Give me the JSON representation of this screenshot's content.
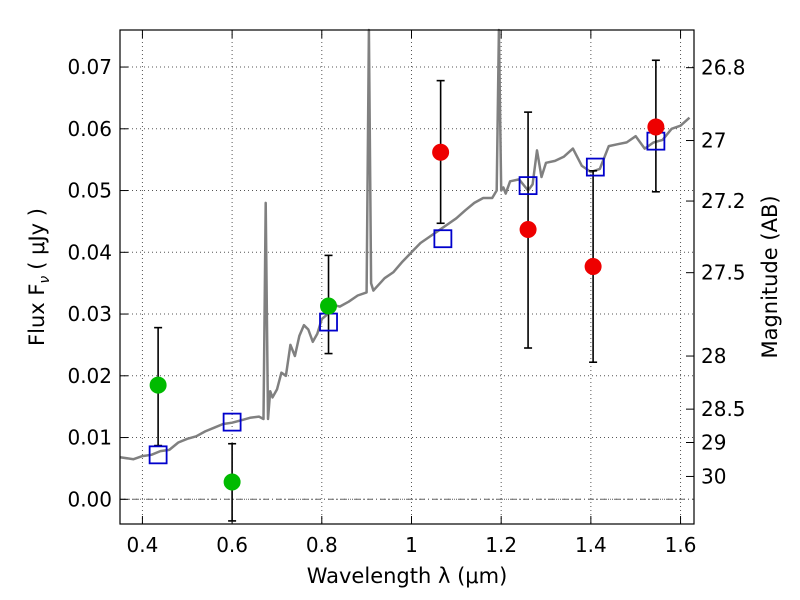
{
  "chart_data": {
    "type": "scatter",
    "xlabel": "Wavelength  λ (μm)",
    "ylabel": "Flux  F",
    "ylabel_sub": "ν",
    "ylabel_unit": "( μJy )",
    "y2label": "Magnitude (AB)",
    "xlim": [
      0.35,
      1.63
    ],
    "ylim": [
      -0.004,
      0.076
    ],
    "grid": true,
    "x_ticks": [
      0.4,
      0.6,
      0.8,
      1.0,
      1.2,
      1.4,
      1.6
    ],
    "x_tick_labels": [
      "0.4",
      "0.6",
      "0.8",
      "1",
      "1.2",
      "1.4",
      "1.6"
    ],
    "y_ticks": [
      0.0,
      0.01,
      0.02,
      0.03,
      0.04,
      0.05,
      0.06,
      0.07
    ],
    "y_tick_labels": [
      "0.00",
      "0.01",
      "0.02",
      "0.03",
      "0.04",
      "0.05",
      "0.06",
      "0.07"
    ],
    "y2_ticks": [
      {
        "label": "26.8",
        "flux": 0.0699
      },
      {
        "label": "27",
        "flux": 0.0581
      },
      {
        "label": "27.2",
        "flux": 0.0483
      },
      {
        "label": "27.5",
        "flux": 0.0367
      },
      {
        "label": "28",
        "flux": 0.0232
      },
      {
        "label": "28.5",
        "flux": 0.0146
      },
      {
        "label": "29",
        "flux": 0.0092
      },
      {
        "label": "30",
        "flux": 0.0037
      }
    ],
    "colors": {
      "template": "#808080",
      "model_squares": "#0000cc",
      "green_points": "#00bb00",
      "red_points": "#ee0000",
      "errorbar": "#000000",
      "grid": "#555555"
    },
    "series": [
      {
        "kind": "template_spectrum",
        "x": [
          0.35,
          0.38,
          0.4,
          0.42,
          0.44,
          0.46,
          0.48,
          0.5,
          0.52,
          0.54,
          0.56,
          0.58,
          0.6,
          0.62,
          0.64,
          0.66,
          0.67,
          0.675,
          0.68,
          0.685,
          0.69,
          0.7,
          0.71,
          0.72,
          0.73,
          0.74,
          0.75,
          0.76,
          0.77,
          0.78,
          0.79,
          0.8,
          0.81,
          0.82,
          0.84,
          0.86,
          0.88,
          0.9,
          0.905,
          0.91,
          0.915,
          0.92,
          0.94,
          0.96,
          0.98,
          1.0,
          1.02,
          1.04,
          1.06,
          1.08,
          1.1,
          1.12,
          1.14,
          1.16,
          1.18,
          1.19,
          1.195,
          1.2,
          1.205,
          1.21,
          1.22,
          1.24,
          1.26,
          1.27,
          1.28,
          1.29,
          1.3,
          1.32,
          1.34,
          1.36,
          1.38,
          1.4,
          1.42,
          1.44,
          1.46,
          1.48,
          1.5,
          1.52,
          1.54,
          1.56,
          1.58,
          1.6,
          1.62
        ],
        "y": [
          0.0068,
          0.0065,
          0.007,
          0.0072,
          0.0078,
          0.008,
          0.0092,
          0.0098,
          0.0102,
          0.011,
          0.0116,
          0.0122,
          0.0124,
          0.0128,
          0.0132,
          0.0134,
          0.013,
          0.048,
          0.013,
          0.0175,
          0.0165,
          0.0178,
          0.0205,
          0.02,
          0.025,
          0.0232,
          0.0265,
          0.0282,
          0.0275,
          0.0255,
          0.0268,
          0.0292,
          0.0298,
          0.0316,
          0.0312,
          0.032,
          0.033,
          0.0335,
          0.076,
          0.035,
          0.0338,
          0.0342,
          0.0358,
          0.0368,
          0.0385,
          0.04,
          0.0415,
          0.0425,
          0.0435,
          0.0445,
          0.0455,
          0.0468,
          0.048,
          0.0488,
          0.0488,
          0.05,
          0.076,
          0.05,
          0.0505,
          0.0495,
          0.0515,
          0.0518,
          0.05,
          0.051,
          0.0565,
          0.0522,
          0.0545,
          0.0548,
          0.0555,
          0.0568,
          0.054,
          0.053,
          0.0535,
          0.0572,
          0.0575,
          0.0578,
          0.0588,
          0.0568,
          0.0578,
          0.0582,
          0.06,
          0.0605,
          0.0618
        ]
      },
      {
        "kind": "model_squares",
        "x": [
          0.435,
          0.6,
          0.815,
          1.07,
          1.26,
          1.41,
          1.545
        ],
        "y": [
          0.0072,
          0.0125,
          0.0287,
          0.0422,
          0.0508,
          0.0538,
          0.058
        ]
      },
      {
        "kind": "observed",
        "x": [
          0.435,
          0.6,
          0.815,
          1.065,
          1.26,
          1.405,
          1.545
        ],
        "y": [
          0.0185,
          0.0028,
          0.0313,
          0.0562,
          0.0437,
          0.0377,
          0.0603
        ],
        "yerr_low": [
          0.0098,
          0.0063,
          0.0077,
          0.0115,
          0.0192,
          0.0155,
          0.0105
        ],
        "yerr_high": [
          0.0093,
          0.0062,
          0.0082,
          0.0116,
          0.019,
          0.0155,
          0.0108
        ],
        "color_class": [
          "green",
          "green",
          "green",
          "red",
          "red",
          "red",
          "red"
        ]
      }
    ]
  }
}
